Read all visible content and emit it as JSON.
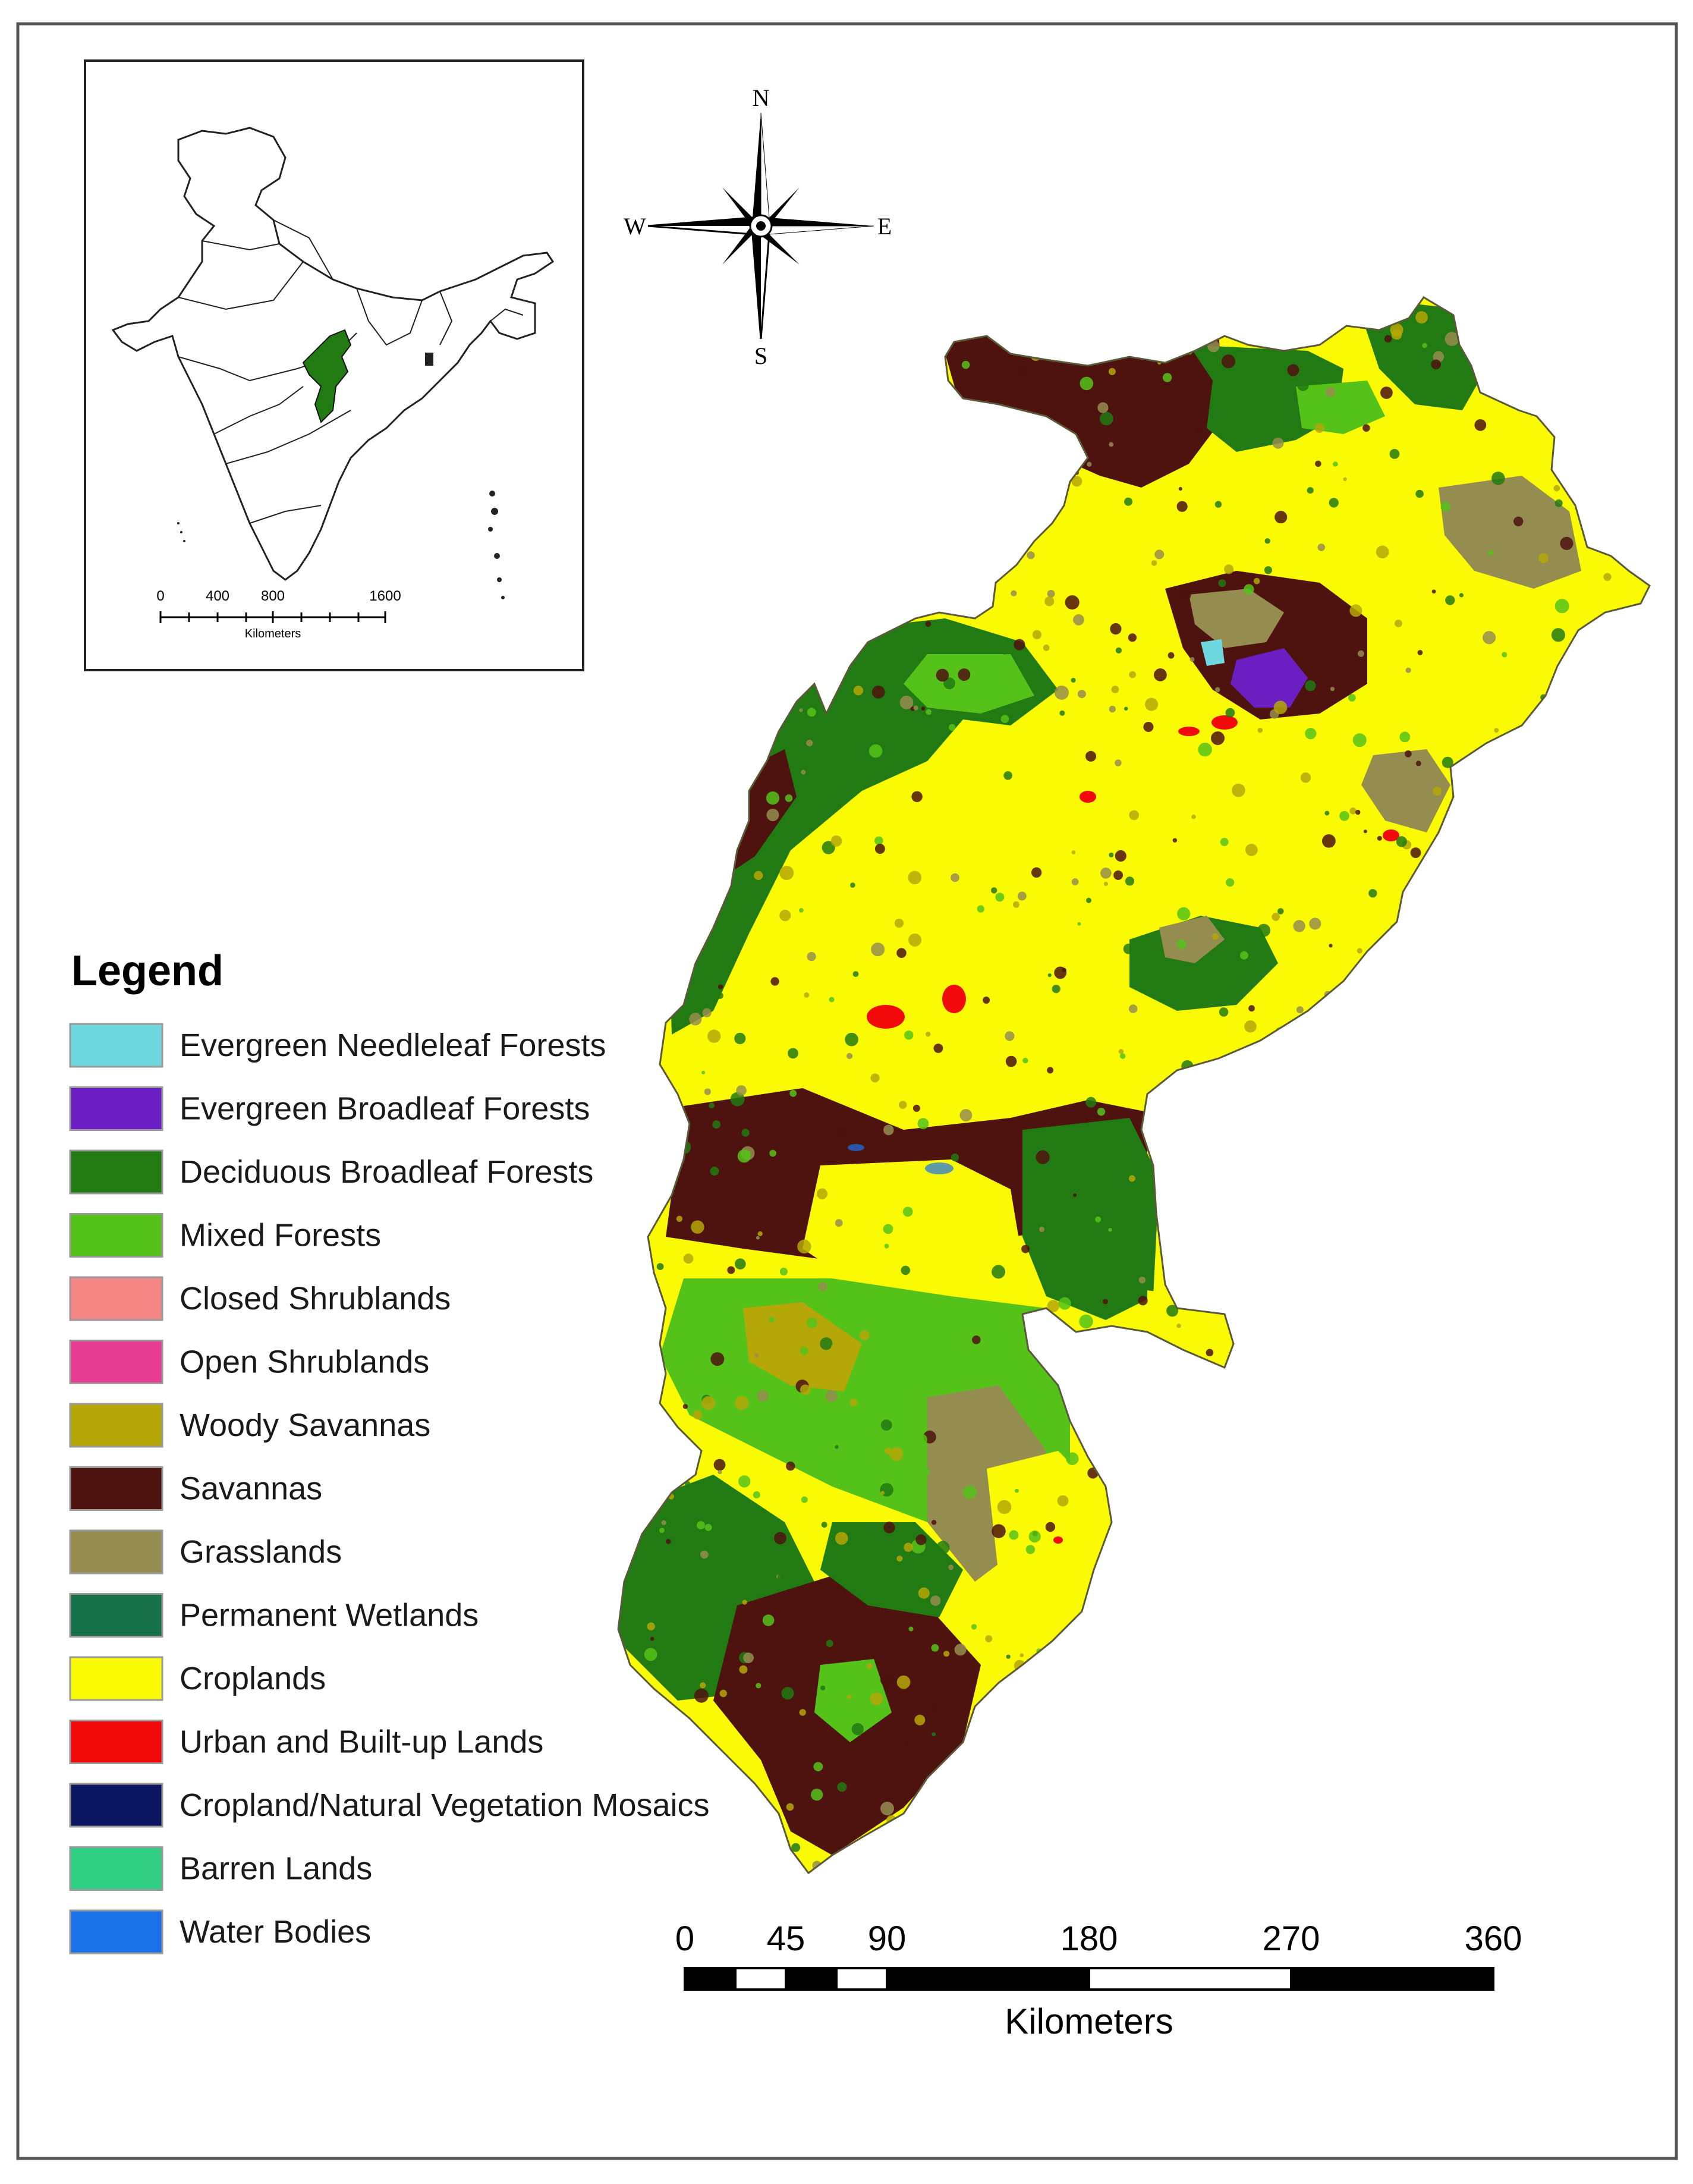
{
  "legend": {
    "title": "Legend",
    "items": [
      {
        "label": "Evergreen Needleleaf Forests",
        "color": "#6fd7de"
      },
      {
        "label": "Evergreen Broadleaf Forests",
        "color": "#6b1fc2"
      },
      {
        "label": "Deciduous Broadleaf Forests",
        "color": "#227a12"
      },
      {
        "label": "Mixed Forests",
        "color": "#55c21a"
      },
      {
        "label": "Closed Shrublands",
        "color": "#f58686"
      },
      {
        "label": "Open Shrublands",
        "color": "#e63c91"
      },
      {
        "label": "Woody Savannas",
        "color": "#b5a707"
      },
      {
        "label": "Savannas",
        "color": "#4e130f"
      },
      {
        "label": "Grasslands",
        "color": "#958d4f"
      },
      {
        "label": "Permanent Wetlands",
        "color": "#17724a"
      },
      {
        "label": "Croplands",
        "color": "#fbfa05"
      },
      {
        "label": "Urban and Built-up Lands",
        "color": "#f20a0a"
      },
      {
        "label": "Cropland/Natural Vegetation Mosaics",
        "color": "#0c1560"
      },
      {
        "label": "Barren Lands",
        "color": "#30cf83"
      },
      {
        "label": "Water Bodies",
        "color": "#1b72e8"
      }
    ]
  },
  "scale_bar": {
    "ticks": [
      "0",
      "45",
      "90",
      "180",
      "270",
      "360"
    ],
    "unit": "Kilometers"
  },
  "inset_map": {
    "ticks": [
      "0",
      "400",
      "800",
      "1600"
    ],
    "unit": "Kilometers",
    "highlight_color": "#227a12"
  },
  "compass": {
    "north": "N",
    "south": "S",
    "east": "E",
    "west": "W"
  }
}
